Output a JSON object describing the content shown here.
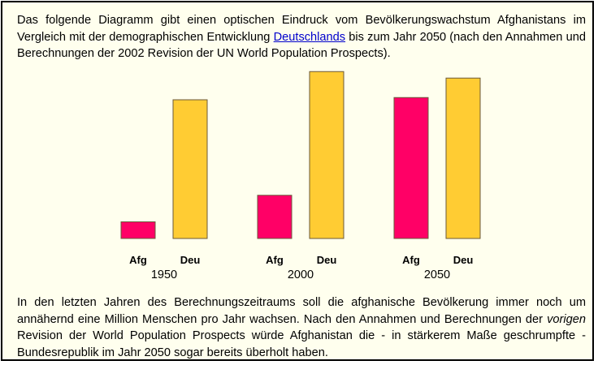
{
  "intro": {
    "text_before_link": "Das folgende Diagramm gibt einen optischen Eindruck vom Bevölkerungswachstum Afghanistans im Vergleich mit der demographischen Entwicklung ",
    "link_text": "Deutschlands",
    "text_after_link": " bis zum Jahr 2050 (nach den Annahmen und Berechnungen der 2002 Revision der UN World Population Prospects)."
  },
  "outro": {
    "text_before_em": "In den letzten Jahren des Berechnungszeitraums soll die afghanische Bevölkerung immer noch um annähernd eine Million Menschen pro Jahr wachsen. Nach den Annahmen und Berechnungen der ",
    "em_text": "vorigen",
    "text_after_em": " Revision der World Population Prospects würde Afghanistan die - in stärkerem Maße geschrumpfte - Bundesrepublik im Jahr 2050 sogar bereits überholt haben."
  },
  "colors": {
    "afg": "#ff0066",
    "deu": "#ffcc33",
    "panel_bg": "#ffffee",
    "link": "#0000cc"
  },
  "chart_data": {
    "type": "bar",
    "title": "",
    "xlabel": "",
    "ylabel": "",
    "categories": [
      "1950",
      "2000",
      "2050"
    ],
    "bar_labels": [
      "Afg",
      "Deu"
    ],
    "ylim": [
      0,
      95
    ],
    "grid": false,
    "legend": "none",
    "series": [
      {
        "name": "Afg",
        "values": [
          8.2,
          21.3,
          69.5
        ]
      },
      {
        "name": "Deu",
        "values": [
          68.4,
          82.3,
          79.1
        ]
      }
    ]
  }
}
